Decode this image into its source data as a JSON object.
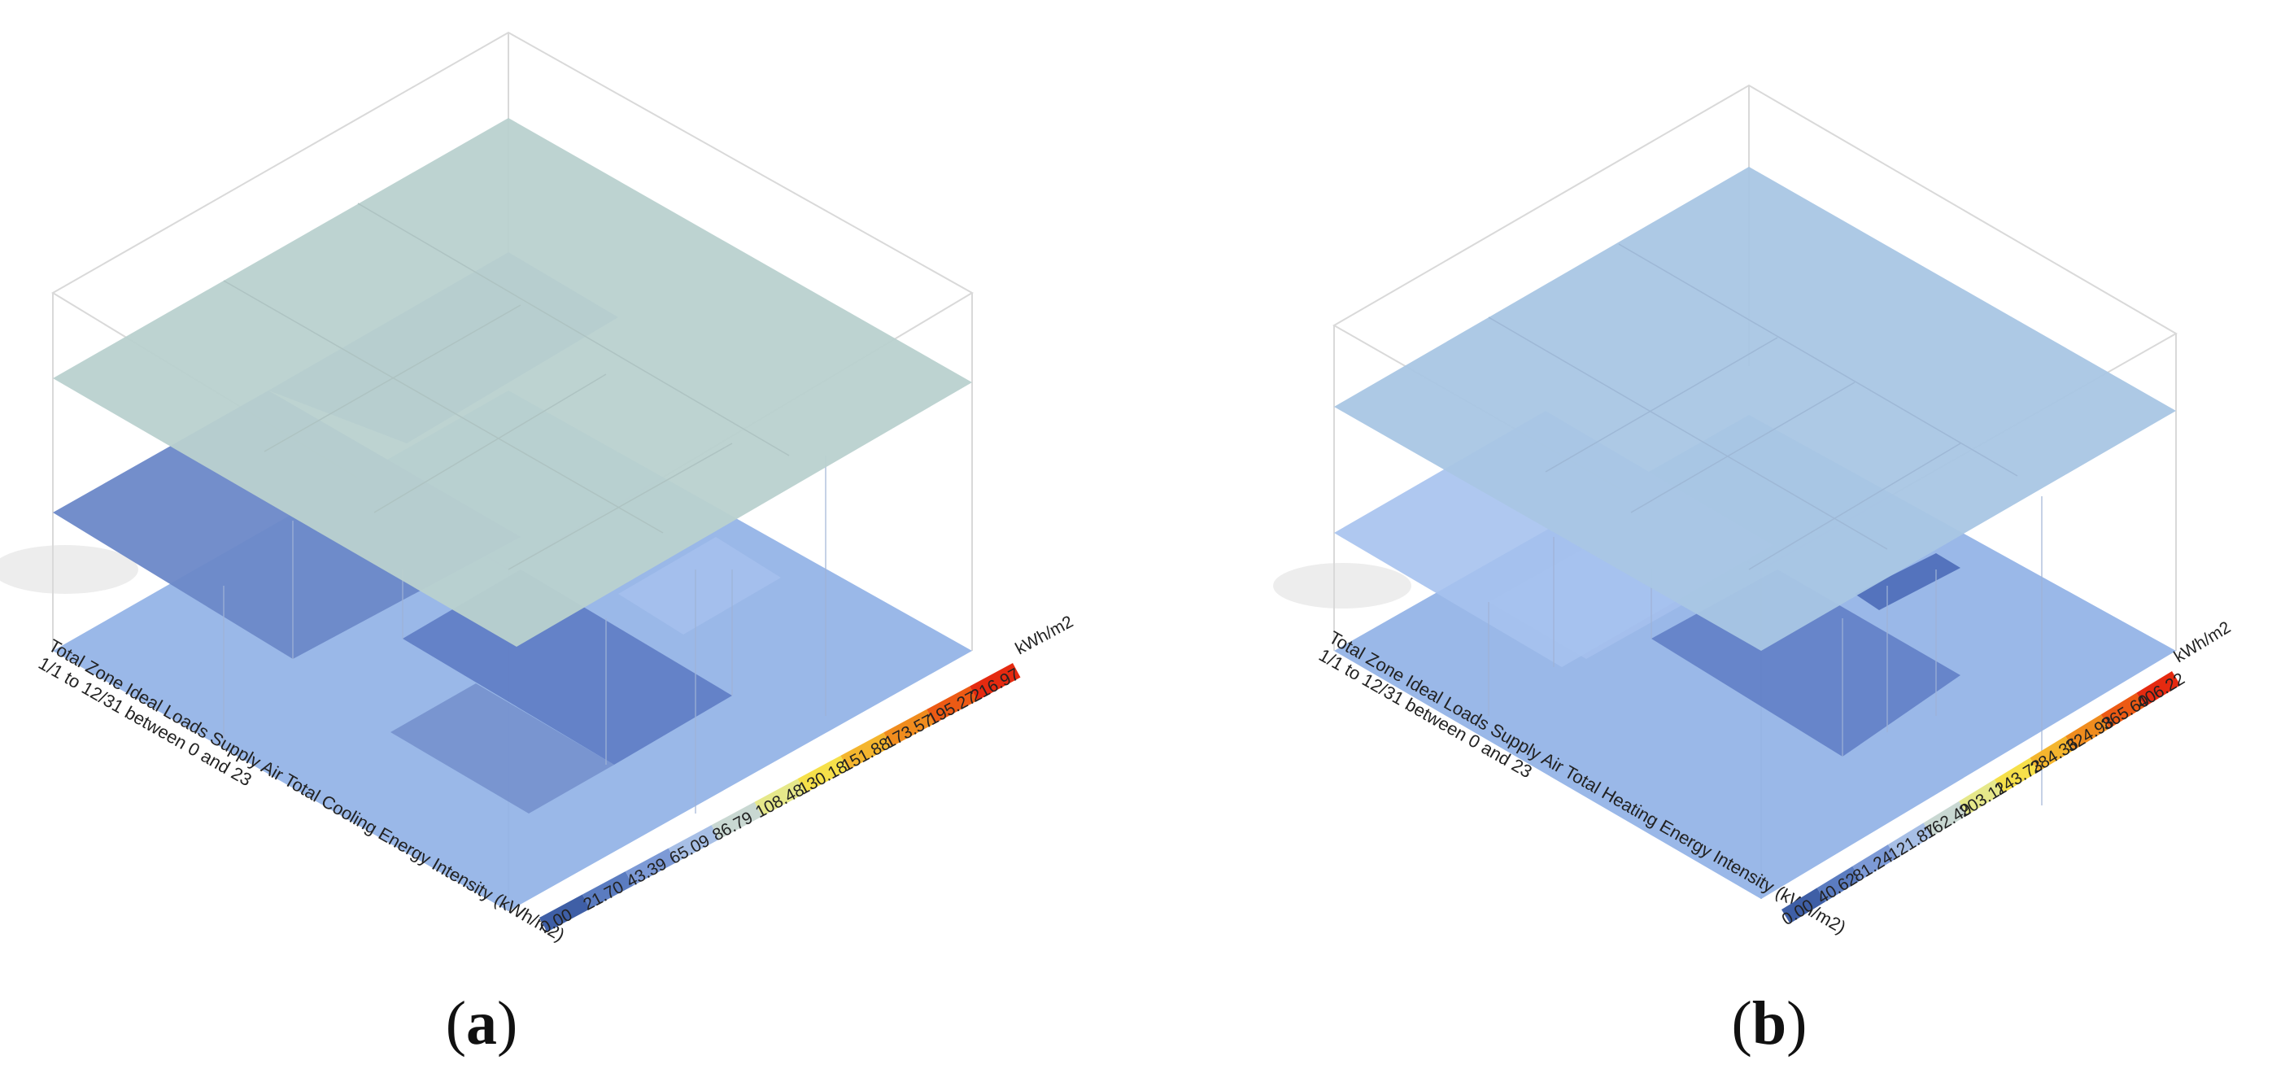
{
  "panels": [
    {
      "id": "a",
      "caption_paren_open": "(",
      "caption_letter": "a",
      "caption_paren_close": ")",
      "title_line1": "Total Zone Ideal Loads Supply Air Total Cooling Energy Intensity (kWh/m2)",
      "title_line2": "1/1 to 12/31 between 0 and 23",
      "legend_unit": "kWh/m2",
      "legend_values": [
        "0.00",
        "21.70",
        "43.39",
        "65.09",
        "86.79",
        "108.48",
        "130.18",
        "151.88",
        "173.57",
        "195.27",
        "216.97"
      ]
    },
    {
      "id": "b",
      "caption_paren_open": "(",
      "caption_letter": "b",
      "caption_paren_close": ")",
      "title_line1": "Total Zone Ideal Loads Supply Air Total Heating Energy Intensity (kWh/m2)",
      "title_line2": "1/1 to 12/31 between 0 and 23",
      "legend_unit": "kWh/m2",
      "legend_values": [
        "0.00",
        "40.62",
        "81.24",
        "121.87",
        "162.49",
        "203.11",
        "243.73",
        "284.36",
        "324.98",
        "365.60",
        "406.22"
      ]
    }
  ],
  "colors": {
    "legend_ramp": [
      "#3f5fa6",
      "#5b7cc0",
      "#7d9ad6",
      "#a7bfe6",
      "#c9d8d2",
      "#e6e88a",
      "#f6e04a",
      "#f4b52e",
      "#f08c1e",
      "#ec5a14",
      "#e52a10"
    ],
    "cooling_top_floor": "#b9d1cf",
    "heating_top_floor": "#a9c6e4",
    "ground_floor": "#8fb0e6",
    "dark_zone": "#5a78c2",
    "mid_zone": "#6b88c8",
    "light_zone": "#a6c0ee",
    "frame_line": "#d4d4d4"
  }
}
